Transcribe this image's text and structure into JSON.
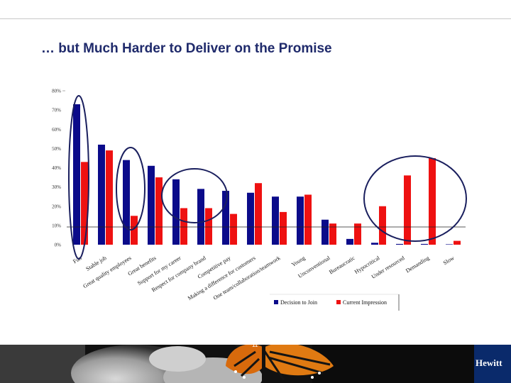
{
  "slide": {
    "title": "… but Much Harder to Deliver on the Promise",
    "page_number": "11",
    "logo": "Hewitt"
  },
  "colors": {
    "title": "#1f2a6b",
    "series_join": "#0b0b8a",
    "series_current": "#ee1111",
    "highlight_ellipse": "#1a1f5e",
    "logo_bg": "#0a2a6b"
  },
  "chart_data": {
    "type": "bar",
    "categories": [
      "Fun",
      "Stable job",
      "Great quality employees",
      "Great benefits",
      "Support for my career",
      "Respect for company brand",
      "Competitive pay",
      "Making a difference for customers",
      "One team/collaboration/teamwork",
      "Young",
      "Unconventional",
      "Bureaucratic",
      "Hypocritical",
      "Under resourced",
      "Demanding",
      "Slow"
    ],
    "series": [
      {
        "name": "Decision to Join",
        "values": [
          73,
          52,
          44,
          41,
          34,
          29,
          28,
          27,
          25,
          25,
          13,
          3,
          1,
          0.4,
          0.4,
          0
        ]
      },
      {
        "name": "Current Impression",
        "values": [
          43,
          49,
          15,
          35,
          19,
          19,
          16,
          32,
          17,
          26,
          11,
          11,
          20,
          36,
          45,
          2
        ]
      }
    ],
    "ylim": [
      0,
      80
    ],
    "yticks": [
      "0%",
      "10%",
      "20%",
      "30%",
      "40%",
      "50%",
      "60%",
      "70%",
      "80%"
    ],
    "legend_position": "bottom-right",
    "grid": false
  }
}
